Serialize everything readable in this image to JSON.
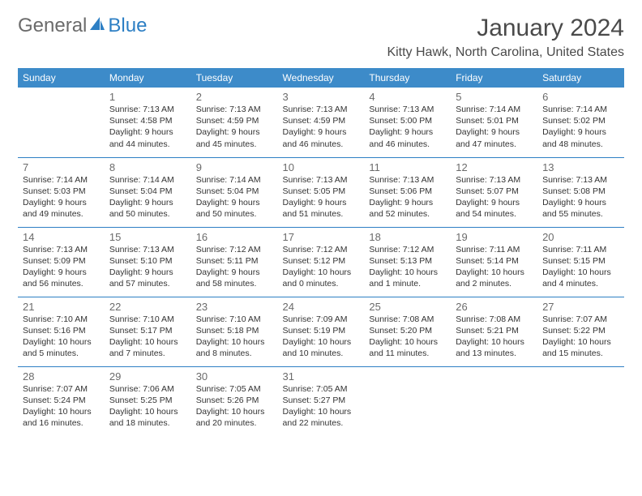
{
  "logo": {
    "text1": "General",
    "text2": "Blue"
  },
  "title": "January 2024",
  "location": "Kitty Hawk, North Carolina, United States",
  "colors": {
    "header_bg": "#3d8bc9",
    "border": "#2d7fc4",
    "text": "#333333",
    "muted": "#6b6b6b"
  },
  "dayNames": [
    "Sunday",
    "Monday",
    "Tuesday",
    "Wednesday",
    "Thursday",
    "Friday",
    "Saturday"
  ],
  "weeks": [
    [
      {
        "n": "",
        "sr": "",
        "ss": "",
        "dl": ""
      },
      {
        "n": "1",
        "sr": "7:13 AM",
        "ss": "4:58 PM",
        "dl": "9 hours and 44 minutes."
      },
      {
        "n": "2",
        "sr": "7:13 AM",
        "ss": "4:59 PM",
        "dl": "9 hours and 45 minutes."
      },
      {
        "n": "3",
        "sr": "7:13 AM",
        "ss": "4:59 PM",
        "dl": "9 hours and 46 minutes."
      },
      {
        "n": "4",
        "sr": "7:13 AM",
        "ss": "5:00 PM",
        "dl": "9 hours and 46 minutes."
      },
      {
        "n": "5",
        "sr": "7:14 AM",
        "ss": "5:01 PM",
        "dl": "9 hours and 47 minutes."
      },
      {
        "n": "6",
        "sr": "7:14 AM",
        "ss": "5:02 PM",
        "dl": "9 hours and 48 minutes."
      }
    ],
    [
      {
        "n": "7",
        "sr": "7:14 AM",
        "ss": "5:03 PM",
        "dl": "9 hours and 49 minutes."
      },
      {
        "n": "8",
        "sr": "7:14 AM",
        "ss": "5:04 PM",
        "dl": "9 hours and 50 minutes."
      },
      {
        "n": "9",
        "sr": "7:14 AM",
        "ss": "5:04 PM",
        "dl": "9 hours and 50 minutes."
      },
      {
        "n": "10",
        "sr": "7:13 AM",
        "ss": "5:05 PM",
        "dl": "9 hours and 51 minutes."
      },
      {
        "n": "11",
        "sr": "7:13 AM",
        "ss": "5:06 PM",
        "dl": "9 hours and 52 minutes."
      },
      {
        "n": "12",
        "sr": "7:13 AM",
        "ss": "5:07 PM",
        "dl": "9 hours and 54 minutes."
      },
      {
        "n": "13",
        "sr": "7:13 AM",
        "ss": "5:08 PM",
        "dl": "9 hours and 55 minutes."
      }
    ],
    [
      {
        "n": "14",
        "sr": "7:13 AM",
        "ss": "5:09 PM",
        "dl": "9 hours and 56 minutes."
      },
      {
        "n": "15",
        "sr": "7:13 AM",
        "ss": "5:10 PM",
        "dl": "9 hours and 57 minutes."
      },
      {
        "n": "16",
        "sr": "7:12 AM",
        "ss": "5:11 PM",
        "dl": "9 hours and 58 minutes."
      },
      {
        "n": "17",
        "sr": "7:12 AM",
        "ss": "5:12 PM",
        "dl": "10 hours and 0 minutes."
      },
      {
        "n": "18",
        "sr": "7:12 AM",
        "ss": "5:13 PM",
        "dl": "10 hours and 1 minute."
      },
      {
        "n": "19",
        "sr": "7:11 AM",
        "ss": "5:14 PM",
        "dl": "10 hours and 2 minutes."
      },
      {
        "n": "20",
        "sr": "7:11 AM",
        "ss": "5:15 PM",
        "dl": "10 hours and 4 minutes."
      }
    ],
    [
      {
        "n": "21",
        "sr": "7:10 AM",
        "ss": "5:16 PM",
        "dl": "10 hours and 5 minutes."
      },
      {
        "n": "22",
        "sr": "7:10 AM",
        "ss": "5:17 PM",
        "dl": "10 hours and 7 minutes."
      },
      {
        "n": "23",
        "sr": "7:10 AM",
        "ss": "5:18 PM",
        "dl": "10 hours and 8 minutes."
      },
      {
        "n": "24",
        "sr": "7:09 AM",
        "ss": "5:19 PM",
        "dl": "10 hours and 10 minutes."
      },
      {
        "n": "25",
        "sr": "7:08 AM",
        "ss": "5:20 PM",
        "dl": "10 hours and 11 minutes."
      },
      {
        "n": "26",
        "sr": "7:08 AM",
        "ss": "5:21 PM",
        "dl": "10 hours and 13 minutes."
      },
      {
        "n": "27",
        "sr": "7:07 AM",
        "ss": "5:22 PM",
        "dl": "10 hours and 15 minutes."
      }
    ],
    [
      {
        "n": "28",
        "sr": "7:07 AM",
        "ss": "5:24 PM",
        "dl": "10 hours and 16 minutes."
      },
      {
        "n": "29",
        "sr": "7:06 AM",
        "ss": "5:25 PM",
        "dl": "10 hours and 18 minutes."
      },
      {
        "n": "30",
        "sr": "7:05 AM",
        "ss": "5:26 PM",
        "dl": "10 hours and 20 minutes."
      },
      {
        "n": "31",
        "sr": "7:05 AM",
        "ss": "5:27 PM",
        "dl": "10 hours and 22 minutes."
      },
      {
        "n": "",
        "sr": "",
        "ss": "",
        "dl": ""
      },
      {
        "n": "",
        "sr": "",
        "ss": "",
        "dl": ""
      },
      {
        "n": "",
        "sr": "",
        "ss": "",
        "dl": ""
      }
    ]
  ],
  "labels": {
    "sunrise": "Sunrise:",
    "sunset": "Sunset:",
    "daylight": "Daylight:"
  }
}
